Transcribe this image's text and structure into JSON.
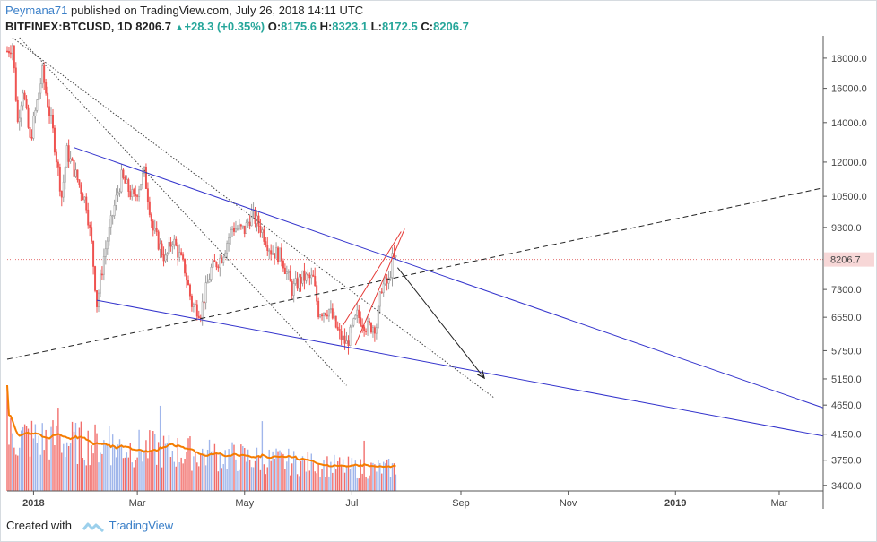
{
  "header": {
    "user": "Peymana71",
    "published_text": " published on TradingView.com, July 26, 2018 14:11 UTC"
  },
  "ohlc": {
    "symbol": "BITFINEX:BTCUSD, 1D",
    "last": "8206.7",
    "change": "+28.3 (+0.35%)",
    "o_label": "O:",
    "o": "8175.6",
    "h_label": "H:",
    "h": "8323.1",
    "l_label": "L:",
    "l": "8172.5",
    "c_label": "C:",
    "c": "8206.7"
  },
  "footer": {
    "created_with": "Created with",
    "brand": "TradingView"
  },
  "colors": {
    "up": "#26a69a",
    "down": "#ef5350",
    "price_line": "#e57373",
    "trendline": "#3333cc",
    "channel": "#e53935",
    "ma": "#f57c00",
    "volume_up": "#8fa9e8",
    "volume_down": "#ef5350",
    "brand": "#3a7fc8"
  },
  "chart_data": {
    "type": "candlestick",
    "x_tick_labels": [
      "2018",
      "Mar",
      "May",
      "Jul",
      "Sep",
      "Nov",
      "2019",
      "Mar"
    ],
    "y_tick_labels": [
      "18000.0",
      "16000.0",
      "14000.0",
      "12000.0",
      "10500.0",
      "9300.0",
      "7300.0",
      "6550.0",
      "5750.0",
      "5150.0",
      "4650.0",
      "4150.0",
      "3750.0",
      "3400.0"
    ],
    "y_axis": "log",
    "y_range": [
      3350,
      19500
    ],
    "x_range": [
      "2017-12-17",
      "2019-03-26"
    ],
    "last_price_label": "8206.7",
    "last_price": 8206.7,
    "candles_monthly_summary": [
      {
        "period": "Dec 2017",
        "open": 19000,
        "high": 19500,
        "low": 11000,
        "close": 13800
      },
      {
        "period": "Jan 2018",
        "open": 13800,
        "high": 17200,
        "low": 9200,
        "close": 10200
      },
      {
        "period": "Feb 2018",
        "open": 10200,
        "high": 11700,
        "low": 6000,
        "close": 10400
      },
      {
        "period": "Mar 2018",
        "open": 10400,
        "high": 11600,
        "low": 6600,
        "close": 6900
      },
      {
        "period": "Apr 2018",
        "open": 6900,
        "high": 9700,
        "low": 6450,
        "close": 9250
      },
      {
        "period": "May 2018",
        "open": 9250,
        "high": 10000,
        "low": 7100,
        "close": 7500
      },
      {
        "period": "Jun 2018",
        "open": 7500,
        "high": 7750,
        "low": 5800,
        "close": 6350
      },
      {
        "period": "Jul 2018",
        "open": 6350,
        "high": 8500,
        "low": 6100,
        "close": 8206.7
      }
    ],
    "lines": [
      {
        "name": "upper-trendline",
        "style": "solid",
        "from": [
          "2018-01-24",
          12700
        ],
        "to": [
          "2019-03-26",
          4600
        ]
      },
      {
        "name": "lower-trendline",
        "style": "solid",
        "from": [
          "2018-02-06",
          7000
        ],
        "to": [
          "2019-03-26",
          4120
        ]
      },
      {
        "name": "dashed-support",
        "style": "dashed",
        "from": [
          "2017-12-17",
          5560
        ],
        "to": [
          "2019-03-26",
          10850
        ]
      },
      {
        "name": "dotted-line-1",
        "style": "dotted",
        "from": [
          "2017-12-24",
          19500
        ],
        "to": [
          "2018-06-28",
          5020
        ]
      },
      {
        "name": "dotted-line-2",
        "style": "dotted",
        "from": [
          "2017-12-20",
          19500
        ],
        "to": [
          "2018-09-20",
          4780
        ]
      },
      {
        "name": "rising-channel-upper",
        "style": "solid",
        "from": [
          "2018-06-26",
          6350
        ],
        "to": [
          "2018-07-29",
          9150
        ]
      },
      {
        "name": "rising-channel-lower",
        "style": "solid",
        "from": [
          "2018-07-03",
          5880
        ],
        "to": [
          "2018-07-31",
          9250
        ]
      },
      {
        "name": "projection-arrow",
        "style": "arrow",
        "from": [
          "2018-07-27",
          7950
        ],
        "to": [
          "2018-09-14",
          5180
        ]
      }
    ],
    "volume": {
      "has_moving_average": true
    }
  }
}
